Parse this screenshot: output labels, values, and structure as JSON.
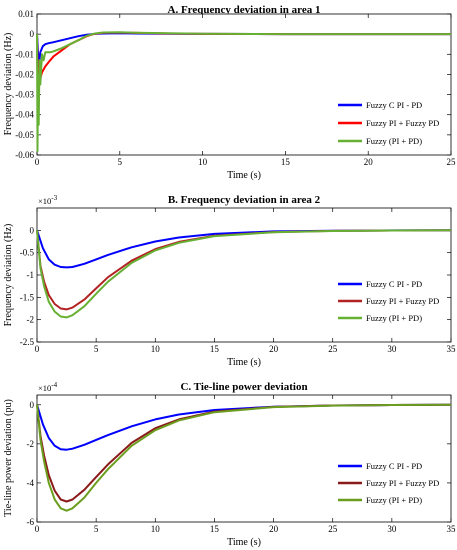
{
  "chart_data": [
    {
      "type": "line",
      "title": "A. Frequency deviation in area 1",
      "xlabel": "Time (s)",
      "ylabel": "Frequency deviation (Hz)",
      "xlim": [
        0,
        25
      ],
      "ylim": [
        -0.06,
        0.01
      ],
      "xticks": [
        0,
        5,
        10,
        15,
        20,
        25
      ],
      "xtick_labels": [
        "0",
        "5",
        "10",
        "15",
        "20",
        "25"
      ],
      "yticks": [
        0.01,
        0,
        -0.01,
        -0.02,
        -0.03,
        -0.04,
        -0.05,
        -0.06
      ],
      "ytick_labels": [
        "0.01",
        "0",
        "-0.01",
        "-0.02",
        "-0.03",
        "-0.04",
        "-0.05",
        "-0.06"
      ],
      "exponent_label": "",
      "legend_position": "right",
      "series": [
        {
          "name": "Fuzzy C PI - PD",
          "color": "#0000ff",
          "x": [
            0,
            0.1,
            0.2,
            0.35,
            0.5,
            0.7,
            1.0,
            1.5,
            2.0,
            2.5,
            3.0,
            3.5,
            4.0,
            5.0,
            6.0,
            8.0,
            10.0,
            15.0,
            20.0,
            25.0
          ],
          "y": [
            0,
            -0.016,
            -0.009,
            -0.006,
            -0.005,
            -0.0045,
            -0.004,
            -0.003,
            -0.002,
            -0.001,
            -0.0003,
            0.0001,
            0.0003,
            0.0004,
            0.0003,
            0.0002,
            0.0001,
            0,
            0,
            0
          ]
        },
        {
          "name": "Fuzzy PI + Fuzzy PD",
          "color": "#ff0000",
          "x": [
            0,
            0.05,
            0.12,
            0.2,
            0.3,
            0.5,
            0.8,
            1.0,
            1.5,
            2.0,
            2.5,
            3.0,
            3.5,
            4.0,
            5.0,
            6.0,
            8.0,
            10.0,
            15.0,
            20.0,
            25.0
          ],
          "y": [
            0,
            -0.03,
            -0.025,
            -0.022,
            -0.019,
            -0.016,
            -0.013,
            -0.011,
            -0.008,
            -0.005,
            -0.003,
            -0.001,
            0.0002,
            0.0007,
            0.0008,
            0.0006,
            0.0003,
            0.0001,
            0,
            0,
            0
          ]
        },
        {
          "name": "Fuzzy (PI + PD)",
          "color": "#66b033",
          "x": [
            0,
            0.03,
            0.06,
            0.1,
            0.15,
            0.2,
            0.3,
            0.4,
            0.5,
            0.8,
            1.0,
            1.5,
            2.0,
            2.5,
            3.0,
            3.5,
            4.0,
            5.0,
            6.0,
            8.0,
            10.0,
            15.0,
            20.0,
            25.0
          ],
          "y": [
            0,
            -0.058,
            -0.02,
            -0.045,
            -0.013,
            -0.025,
            -0.01,
            -0.013,
            -0.009,
            -0.009,
            -0.0085,
            -0.007,
            -0.005,
            -0.003,
            -0.0008,
            0.0003,
            0.0008,
            0.0009,
            0.0007,
            0.0004,
            0.0002,
            0,
            0,
            0
          ]
        }
      ]
    },
    {
      "type": "line",
      "title": "B. Frequency deviation in area 2",
      "xlabel": "Time (s)",
      "ylabel": "Frequency deviation (Hz)",
      "xlim": [
        0,
        35
      ],
      "ylim": [
        -2.5,
        0.5
      ],
      "xticks": [
        0,
        5,
        10,
        15,
        20,
        25,
        30,
        35
      ],
      "xtick_labels": [
        "0",
        "5",
        "10",
        "15",
        "20",
        "25",
        "30",
        "35"
      ],
      "yticks": [
        0,
        -0.5,
        -1,
        -1.5,
        -2,
        -2.5
      ],
      "ytick_labels": [
        "0",
        "-0.5",
        "-1",
        "-1.5",
        "-2",
        "-2.5"
      ],
      "exponent_label": "×10",
      "exponent_power": "-3",
      "legend_position": "right",
      "series": [
        {
          "name": "Fuzzy C PI - PD",
          "color": "#0000ff",
          "x": [
            0,
            0.5,
            1.0,
            1.5,
            2.0,
            2.5,
            3.0,
            4.0,
            5.0,
            6.0,
            8.0,
            10.0,
            12.0,
            15.0,
            20.0,
            25.0,
            30.0,
            35.0
          ],
          "y": [
            0,
            -0.4,
            -0.65,
            -0.77,
            -0.82,
            -0.83,
            -0.82,
            -0.75,
            -0.65,
            -0.55,
            -0.38,
            -0.25,
            -0.16,
            -0.08,
            -0.025,
            -0.008,
            -0.002,
            0
          ]
        },
        {
          "name": "Fuzzy PI + Fuzzy PD",
          "color": "#b22222",
          "x": [
            0,
            0.3,
            0.6,
            1.0,
            1.5,
            2.0,
            2.5,
            3.0,
            4.0,
            5.0,
            6.0,
            8.0,
            10.0,
            12.0,
            15.0,
            20.0,
            25.0,
            30.0,
            35.0
          ],
          "y": [
            0,
            -0.8,
            -1.15,
            -1.45,
            -1.65,
            -1.75,
            -1.77,
            -1.73,
            -1.55,
            -1.3,
            -1.05,
            -0.68,
            -0.42,
            -0.26,
            -0.12,
            -0.04,
            -0.012,
            -0.004,
            0
          ]
        },
        {
          "name": "Fuzzy (PI + PD)",
          "color": "#66b033",
          "x": [
            0,
            0.3,
            0.6,
            1.0,
            1.5,
            2.0,
            2.5,
            3.0,
            4.0,
            5.0,
            6.0,
            8.0,
            10.0,
            12.0,
            15.0,
            20.0,
            25.0,
            30.0,
            35.0
          ],
          "y": [
            0,
            -0.85,
            -1.25,
            -1.6,
            -1.82,
            -1.93,
            -1.95,
            -1.9,
            -1.7,
            -1.42,
            -1.15,
            -0.73,
            -0.45,
            -0.28,
            -0.13,
            -0.045,
            -0.014,
            -0.004,
            0
          ]
        }
      ]
    },
    {
      "type": "line",
      "title": "C. Tie-line power deviation",
      "xlabel": "Time (s)",
      "ylabel": "Tie-line power deviation (pu)",
      "xlim": [
        0,
        35
      ],
      "ylim": [
        -6,
        0.5
      ],
      "xticks": [
        0,
        5,
        10,
        15,
        20,
        25,
        30,
        35
      ],
      "xtick_labels": [
        "0",
        "5",
        "10",
        "15",
        "20",
        "25",
        "30",
        "35"
      ],
      "yticks": [
        0,
        -2,
        -4,
        -6
      ],
      "ytick_labels": [
        "0",
        "-2",
        "-4",
        "-6"
      ],
      "exponent_label": "×10",
      "exponent_power": "-4",
      "legend_position": "right",
      "series": [
        {
          "name": "Fuzzy C PI - PD",
          "color": "#0000ff",
          "x": [
            0,
            0.5,
            1.0,
            1.5,
            2.0,
            2.5,
            3.0,
            4.0,
            5.0,
            6.0,
            8.0,
            10.0,
            12.0,
            15.0,
            20.0,
            25.0,
            30.0,
            35.0
          ],
          "y": [
            0,
            -1.0,
            -1.7,
            -2.1,
            -2.28,
            -2.3,
            -2.25,
            -2.05,
            -1.8,
            -1.55,
            -1.1,
            -0.75,
            -0.5,
            -0.27,
            -0.1,
            -0.035,
            -0.01,
            0
          ]
        },
        {
          "name": "Fuzzy PI + Fuzzy PD",
          "color": "#8b1a1a",
          "x": [
            0,
            0.3,
            0.6,
            1.0,
            1.5,
            2.0,
            2.5,
            3.0,
            4.0,
            5.0,
            6.0,
            8.0,
            10.0,
            12.0,
            15.0,
            20.0,
            25.0,
            30.0,
            35.0
          ],
          "y": [
            0,
            -1.6,
            -2.6,
            -3.6,
            -4.4,
            -4.85,
            -4.95,
            -4.85,
            -4.35,
            -3.7,
            -3.05,
            -1.95,
            -1.2,
            -0.75,
            -0.35,
            -0.11,
            -0.035,
            -0.01,
            0
          ]
        },
        {
          "name": "Fuzzy (PI + PD)",
          "color": "#6b9e1f",
          "x": [
            0,
            0.3,
            0.6,
            1.0,
            1.5,
            2.0,
            2.5,
            3.0,
            4.0,
            5.0,
            6.0,
            8.0,
            10.0,
            12.0,
            15.0,
            20.0,
            25.0,
            30.0,
            35.0
          ],
          "y": [
            0,
            -1.8,
            -2.9,
            -4.0,
            -4.85,
            -5.3,
            -5.42,
            -5.3,
            -4.75,
            -4.0,
            -3.3,
            -2.1,
            -1.3,
            -0.8,
            -0.38,
            -0.12,
            -0.04,
            -0.01,
            0
          ]
        }
      ]
    }
  ]
}
